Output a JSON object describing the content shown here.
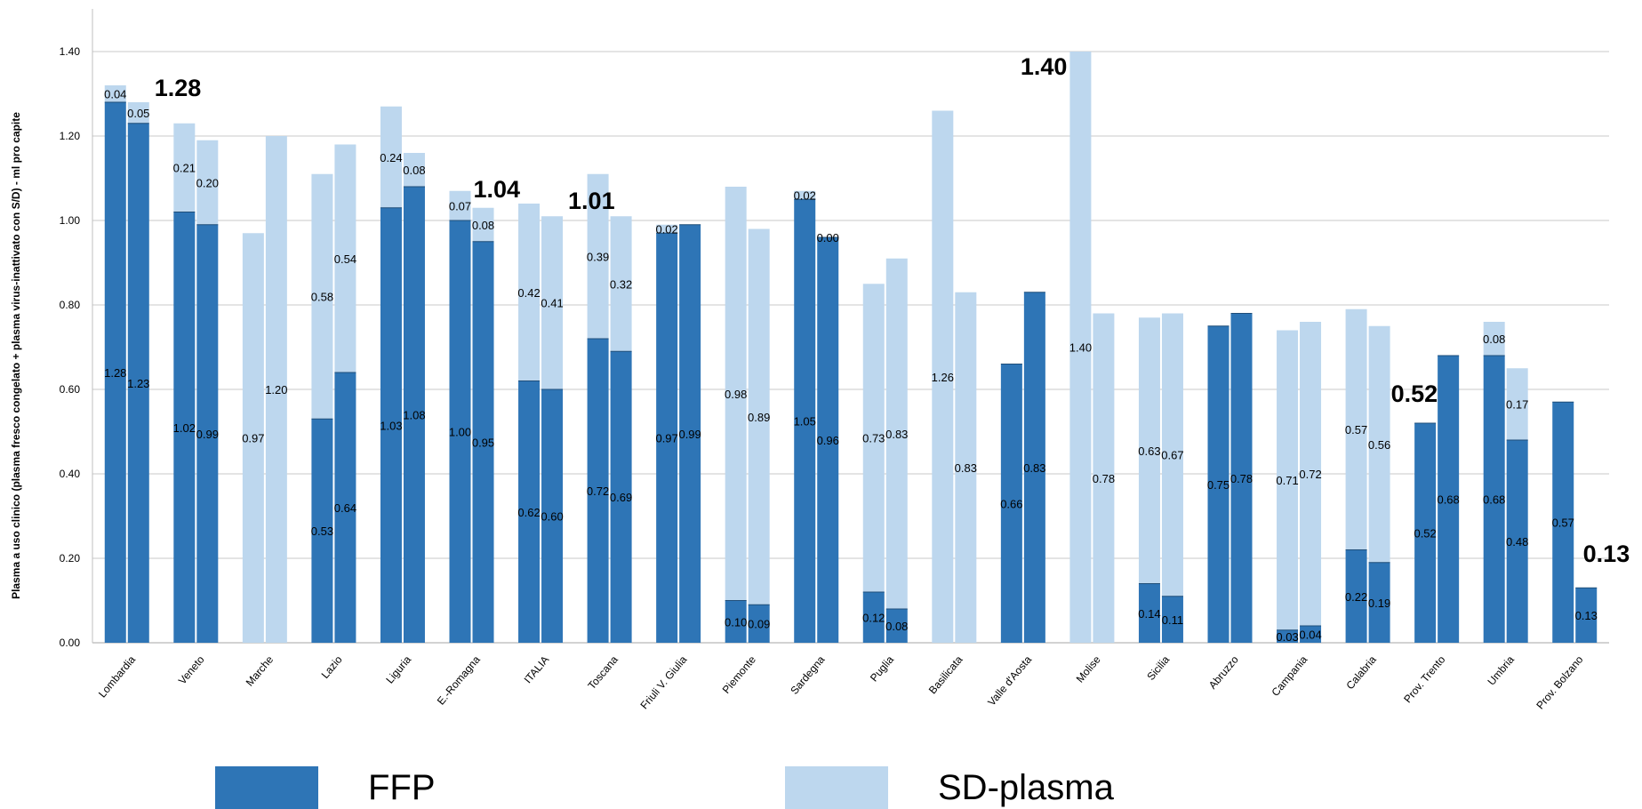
{
  "chart_data": {
    "type": "bar",
    "stacked": true,
    "ylabel": "Plasma a uso clinico (plasma fresco congelato + plasma virus-inattivato con S/D) - ml pro capite",
    "ylim": [
      0,
      1.5
    ],
    "yticks": [
      "0.00",
      "0.20",
      "0.40",
      "0.60",
      "0.80",
      "1.00",
      "1.20",
      "1.40"
    ],
    "grid": true,
    "legend_position": "bottom",
    "colors": {
      "FFP": "#2e75b6",
      "SD-plasma": "#bdd7ee"
    },
    "categories": [
      "Lombardia",
      "Veneto",
      "Marche",
      "Lazio",
      "Liguria",
      "E.-Romagna",
      "ITALIA",
      "Toscana",
      "Friuli V. Giulia",
      "Piemonte",
      "Sardegna",
      "Puglia",
      "Basilicata",
      "Valle d'Aosta",
      "Molise",
      "Sicilia",
      "Abruzzo",
      "Campania",
      "Calabria",
      "Prov. Trento",
      "Umbria",
      "Prov. Bolzano"
    ],
    "series": [
      {
        "name": "FFP",
        "values": [
          [
            1.28,
            1.23
          ],
          [
            1.02,
            0.99
          ],
          [
            0,
            0
          ],
          [
            0.53,
            0.64
          ],
          [
            1.03,
            1.08
          ],
          [
            1.0,
            0.95
          ],
          [
            0.62,
            0.6
          ],
          [
            0.72,
            0.69
          ],
          [
            0.97,
            0.99
          ],
          [
            0.1,
            0.09
          ],
          [
            1.05,
            0.96
          ],
          [
            0.12,
            0.08
          ],
          [
            0,
            0
          ],
          [
            0.66,
            0.83
          ],
          [
            0,
            0
          ],
          [
            0.14,
            0.11
          ],
          [
            0.75,
            0.78
          ],
          [
            0.03,
            0.04
          ],
          [
            0.22,
            0.19
          ],
          [
            0.52,
            0.68
          ],
          [
            0.68,
            0.48
          ],
          [
            0.57,
            0.13
          ]
        ]
      },
      {
        "name": "SD-plasma",
        "values": [
          [
            0.04,
            0.05
          ],
          [
            0.21,
            0.2
          ],
          [
            0.97,
            1.2
          ],
          [
            0.58,
            0.54
          ],
          [
            0.24,
            0.08
          ],
          [
            0.07,
            0.08
          ],
          [
            0.42,
            0.41
          ],
          [
            0.39,
            0.32
          ],
          [
            0.02,
            0
          ],
          [
            0.98,
            0.89
          ],
          [
            0.02,
            0.0
          ],
          [
            0.73,
            0.83
          ],
          [
            1.26,
            0.83
          ],
          [
            0,
            0
          ],
          [
            1.4,
            0.78
          ],
          [
            0.63,
            0.67
          ],
          [
            0,
            0
          ],
          [
            0.71,
            0.72
          ],
          [
            0.57,
            0.56
          ],
          [
            0,
            0
          ],
          [
            0.08,
            0.17
          ],
          [
            0,
            0
          ]
        ]
      }
    ],
    "ffp_labels": [
      [
        "1.28",
        "1.23"
      ],
      [
        "1.02",
        "0.99"
      ],
      [
        "",
        ""
      ],
      [
        "0.53",
        "0.64"
      ],
      [
        "1.03",
        "1.08"
      ],
      [
        "1.00",
        "0.95"
      ],
      [
        "0.62",
        "0.60"
      ],
      [
        "0.72",
        "0.69"
      ],
      [
        "0.97",
        "0.99"
      ],
      [
        "0.10",
        "0.09"
      ],
      [
        "1.05",
        "0.96"
      ],
      [
        "0.12",
        "0.08"
      ],
      [
        "",
        ""
      ],
      [
        "0.66",
        "0.83"
      ],
      [
        "",
        ""
      ],
      [
        "0.14",
        "0.11"
      ],
      [
        "0.75",
        "0.78"
      ],
      [
        "0.03",
        "0.04"
      ],
      [
        "0.22",
        "0.19"
      ],
      [
        "0.52",
        "0.68"
      ],
      [
        "0.68",
        "0.48"
      ],
      [
        "0.57",
        "0.13"
      ]
    ],
    "sd_labels": [
      [
        "0.04",
        "0.05"
      ],
      [
        "0.21",
        "0.20"
      ],
      [
        "0.97",
        "1.20"
      ],
      [
        "0.58",
        "0.54"
      ],
      [
        "0.24",
        "0.08"
      ],
      [
        "0.07",
        "0.08"
      ],
      [
        "0.42",
        "0.41"
      ],
      [
        "0.39",
        "0.32"
      ],
      [
        "0.02",
        ""
      ],
      [
        "0.98",
        "0.89"
      ],
      [
        "0.02",
        "0.00"
      ],
      [
        "0.73",
        "0.83"
      ],
      [
        "1.26",
        "0.83"
      ],
      [
        "",
        ""
      ],
      [
        "1.40",
        "0.78"
      ],
      [
        "0.63",
        "0.67"
      ],
      [
        "",
        ""
      ],
      [
        "0.71",
        "0.72"
      ],
      [
        "0.57",
        "0.56"
      ],
      [
        "",
        ""
      ],
      [
        "0.08",
        "0.17"
      ],
      [
        "",
        ""
      ]
    ],
    "annotations": [
      {
        "text": "1.28",
        "category": "Lombardia",
        "value": 1.28
      },
      {
        "text": "1.04",
        "category": "ITALIA",
        "value": 1.04
      },
      {
        "text": "1.01",
        "category": "ITALIA",
        "value": 1.01
      },
      {
        "text": "1.40",
        "category": "Molise",
        "value": 1.4
      },
      {
        "text": "0.52",
        "category": "Prov. Trento",
        "value": 0.52
      },
      {
        "text": "0.13",
        "category": "Prov. Bolzano",
        "value": 0.13
      }
    ]
  },
  "legend": {
    "ffp_label": "FFP",
    "sd_label": "SD-plasma"
  }
}
